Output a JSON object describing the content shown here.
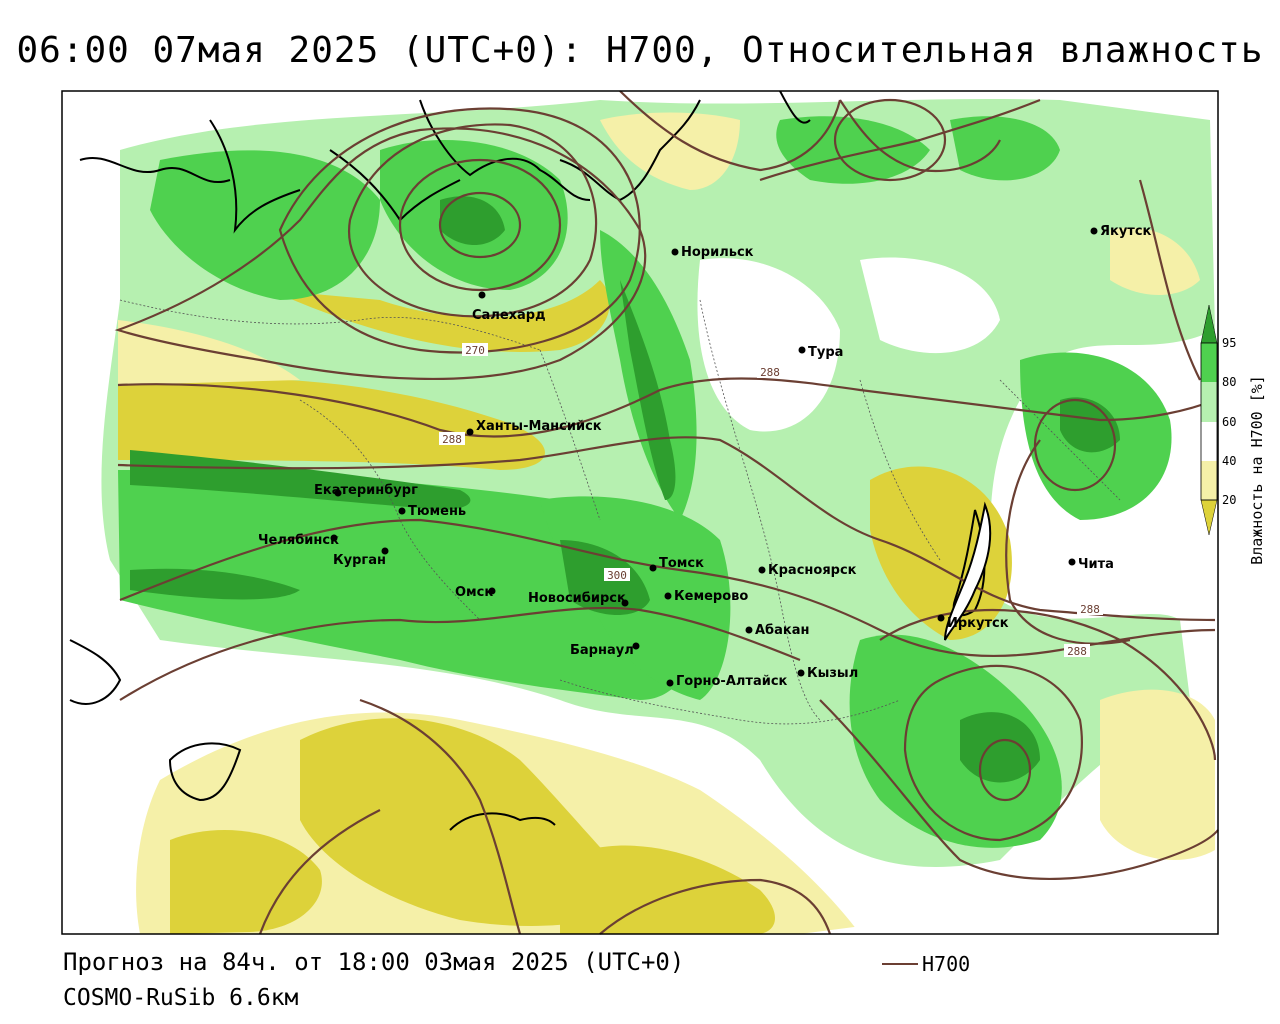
{
  "title": "06:00 07мая 2025 (UTC+0): H700, Относительная влажность",
  "footer": {
    "forecast": "Прогноз на 84ч. от 18:00 03мая 2025 (UTC+0)",
    "model": "COSMO-RuSib 6.6км"
  },
  "legend": {
    "contour_label": "H700",
    "contour_color": "#6b3f33"
  },
  "colorbar": {
    "label": "Влажность на H700 [%]",
    "ticks": [
      "95",
      "80",
      "60",
      "40",
      "20"
    ],
    "colors": [
      "#2e9e2e",
      "#4fd14f",
      "#b6f0b0",
      "#ffffff",
      "#f5f0a8",
      "#ddd23a"
    ]
  },
  "isohypses": {
    "labels": [
      {
        "text": "270",
        "near": "Салехард"
      },
      {
        "text": "288",
        "near": "Ханты-Мансийск"
      },
      {
        "text": "288",
        "near": "Тура"
      },
      {
        "text": "300",
        "near": "Томск"
      },
      {
        "text": "288",
        "near": "Чита"
      },
      {
        "text": "288",
        "near": "Иркутск"
      }
    ]
  },
  "cities": [
    {
      "name": "Якутск"
    },
    {
      "name": "Норильск"
    },
    {
      "name": "Салехард"
    },
    {
      "name": "Тура"
    },
    {
      "name": "Ханты-Мансийск"
    },
    {
      "name": "Екатеринбург"
    },
    {
      "name": "Тюмень"
    },
    {
      "name": "Челябинск"
    },
    {
      "name": "Курган"
    },
    {
      "name": "Омск"
    },
    {
      "name": "Томск"
    },
    {
      "name": "Новосибирск"
    },
    {
      "name": "Кемерово"
    },
    {
      "name": "Красноярск"
    },
    {
      "name": "Абакан"
    },
    {
      "name": "Барнаул"
    },
    {
      "name": "Горно-Алтайск"
    },
    {
      "name": "Кызыл"
    },
    {
      "name": "Иркутск"
    },
    {
      "name": "Чита"
    }
  ]
}
